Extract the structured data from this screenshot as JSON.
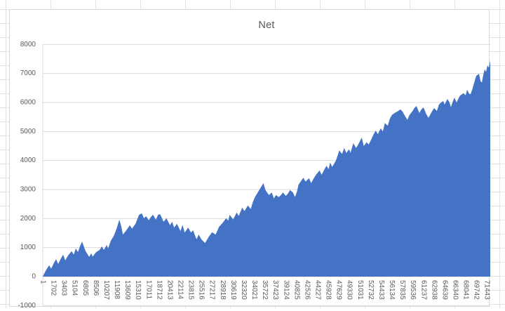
{
  "chart_data": {
    "type": "area",
    "title": "Net",
    "legend": "none",
    "grid": true,
    "x_label_rotation": 90,
    "ylim": [
      -1000,
      8000
    ],
    "y_axis_labels": [
      -1000,
      0,
      1000,
      2000,
      3000,
      4000,
      5000,
      6000,
      7000,
      8000
    ],
    "x_axis_labels": [
      1,
      1702,
      3403,
      5104,
      6805,
      8506,
      10207,
      11908,
      13609,
      15310,
      17011,
      18712,
      20413,
      22114,
      23815,
      25516,
      27217,
      28918,
      30619,
      32320,
      34021,
      35722,
      37423,
      39124,
      40825,
      42526,
      44227,
      45928,
      47629,
      49330,
      51031,
      52732,
      54433,
      56134,
      57835,
      59536,
      61237,
      62938,
      64639,
      66340,
      68041,
      69742,
      71443
    ],
    "series": [
      {
        "name": "Net",
        "color": "#4472c4"
      }
    ],
    "points": [
      [
        1,
        0
      ],
      [
        113,
        50
      ],
      [
        452,
        195
      ],
      [
        1017,
        390
      ],
      [
        1356,
        270
      ],
      [
        1808,
        480
      ],
      [
        2147,
        600
      ],
      [
        2486,
        435
      ],
      [
        2938,
        630
      ],
      [
        3277,
        755
      ],
      [
        3616,
        560
      ],
      [
        4068,
        725
      ],
      [
        4633,
        875
      ],
      [
        4972,
        755
      ],
      [
        5311,
        970
      ],
      [
        5650,
        845
      ],
      [
        5989,
        1050
      ],
      [
        6328,
        1210
      ],
      [
        6667,
        1000
      ],
      [
        6893,
        875
      ],
      [
        7458,
        680
      ],
      [
        7797,
        800
      ],
      [
        8023,
        690
      ],
      [
        8588,
        845
      ],
      [
        9153,
        920
      ],
      [
        9492,
        1040
      ],
      [
        9831,
        920
      ],
      [
        10283,
        1090
      ],
      [
        10509,
        970
      ],
      [
        10961,
        1240
      ],
      [
        11413,
        1400
      ],
      [
        11865,
        1650
      ],
      [
        12317,
        1960
      ],
      [
        12656,
        1700
      ],
      [
        12882,
        1450
      ],
      [
        13447,
        1600
      ],
      [
        14012,
        1770
      ],
      [
        14351,
        1650
      ],
      [
        14916,
        1820
      ],
      [
        15481,
        2130
      ],
      [
        15933,
        2180
      ],
      [
        16272,
        2010
      ],
      [
        16611,
        2080
      ],
      [
        17063,
        1940
      ],
      [
        17402,
        2060
      ],
      [
        17741,
        2130
      ],
      [
        18193,
        1960
      ],
      [
        18532,
        2130
      ],
      [
        18871,
        2150
      ],
      [
        19436,
        1890
      ],
      [
        19888,
        2010
      ],
      [
        20453,
        1770
      ],
      [
        20792,
        1890
      ],
      [
        21131,
        1690
      ],
      [
        21583,
        1820
      ],
      [
        22148,
        1570
      ],
      [
        22487,
        1780
      ],
      [
        22826,
        1520
      ],
      [
        23391,
        1690
      ],
      [
        23843,
        1520
      ],
      [
        24182,
        1600
      ],
      [
        24521,
        1400
      ],
      [
        24747,
        1290
      ],
      [
        25086,
        1450
      ],
      [
        25538,
        1280
      ],
      [
        26103,
        1160
      ],
      [
        26668,
        1360
      ],
      [
        27233,
        1530
      ],
      [
        27798,
        1450
      ],
      [
        28363,
        1720
      ],
      [
        28928,
        1850
      ],
      [
        29493,
        2010
      ],
      [
        29832,
        1930
      ],
      [
        30058,
        2130
      ],
      [
        30623,
        1970
      ],
      [
        31188,
        2210
      ],
      [
        31527,
        2090
      ],
      [
        32092,
        2380
      ],
      [
        32431,
        2260
      ],
      [
        32996,
        2450
      ],
      [
        33448,
        2330
      ],
      [
        33787,
        2570
      ],
      [
        34126,
        2740
      ],
      [
        34578,
        2900
      ],
      [
        35143,
        3100
      ],
      [
        35482,
        3220
      ],
      [
        35821,
        2980
      ],
      [
        36386,
        2810
      ],
      [
        36838,
        2900
      ],
      [
        37177,
        2690
      ],
      [
        37516,
        2810
      ],
      [
        37968,
        2740
      ],
      [
        38307,
        2810
      ],
      [
        38646,
        2900
      ],
      [
        39098,
        2780
      ],
      [
        39437,
        2860
      ],
      [
        39776,
        2980
      ],
      [
        40228,
        2900
      ],
      [
        40567,
        2740
      ],
      [
        40906,
        2950
      ],
      [
        41132,
        3170
      ],
      [
        41697,
        3340
      ],
      [
        41923,
        3410
      ],
      [
        42262,
        3270
      ],
      [
        42827,
        3390
      ],
      [
        43166,
        3220
      ],
      [
        43618,
        3400
      ],
      [
        43957,
        3510
      ],
      [
        44522,
        3660
      ],
      [
        44861,
        3510
      ],
      [
        45313,
        3700
      ],
      [
        45652,
        3820
      ],
      [
        45991,
        3700
      ],
      [
        46217,
        3930
      ],
      [
        46556,
        3780
      ],
      [
        46895,
        3900
      ],
      [
        47121,
        3990
      ],
      [
        47460,
        4190
      ],
      [
        47686,
        4350
      ],
      [
        48138,
        4230
      ],
      [
        48477,
        4430
      ],
      [
        48816,
        4260
      ],
      [
        49268,
        4390
      ],
      [
        49494,
        4260
      ],
      [
        49946,
        4600
      ],
      [
        50398,
        4430
      ],
      [
        50737,
        4550
      ],
      [
        51302,
        4790
      ],
      [
        51641,
        4500
      ],
      [
        52093,
        4630
      ],
      [
        52432,
        4550
      ],
      [
        52884,
        4750
      ],
      [
        53223,
        4910
      ],
      [
        53562,
        5030
      ],
      [
        53901,
        4910
      ],
      [
        54353,
        5110
      ],
      [
        54692,
        5000
      ],
      [
        55031,
        5290
      ],
      [
        55483,
        5200
      ],
      [
        55822,
        5440
      ],
      [
        56161,
        5570
      ],
      [
        56613,
        5640
      ],
      [
        57178,
        5710
      ],
      [
        57517,
        5760
      ],
      [
        57856,
        5690
      ],
      [
        58308,
        5520
      ],
      [
        58647,
        5400
      ],
      [
        58986,
        5570
      ],
      [
        59438,
        5690
      ],
      [
        59777,
        5810
      ],
      [
        60116,
        5880
      ],
      [
        60568,
        5640
      ],
      [
        60907,
        5760
      ],
      [
        61246,
        5830
      ],
      [
        61698,
        5590
      ],
      [
        62037,
        5470
      ],
      [
        62602,
        5690
      ],
      [
        62941,
        5810
      ],
      [
        63393,
        5710
      ],
      [
        63732,
        5930
      ],
      [
        64071,
        6000
      ],
      [
        64410,
        6050
      ],
      [
        64636,
        5930
      ],
      [
        65088,
        6120
      ],
      [
        65427,
        6000
      ],
      [
        65653,
        5840
      ],
      [
        65992,
        6050
      ],
      [
        66218,
        6170
      ],
      [
        66557,
        6000
      ],
      [
        66896,
        6150
      ],
      [
        67122,
        6240
      ],
      [
        67687,
        6320
      ],
      [
        68026,
        6250
      ],
      [
        68252,
        6440
      ],
      [
        68591,
        6300
      ],
      [
        68817,
        6290
      ],
      [
        69156,
        6500
      ],
      [
        69382,
        6680
      ],
      [
        69721,
        6920
      ],
      [
        70173,
        6990
      ],
      [
        70399,
        6750
      ],
      [
        70625,
        6680
      ],
      [
        70851,
        6950
      ],
      [
        71077,
        7140
      ],
      [
        71303,
        7060
      ],
      [
        71529,
        7280
      ],
      [
        71755,
        7200
      ],
      [
        71981,
        7450
      ]
    ]
  },
  "colors": {
    "area_fill": "#4472c4",
    "axis_text": "#595959",
    "title_text": "#595959",
    "gridline": "#d9d9d9",
    "chart_border": "#d9d9d9",
    "sheet_line": "#e2e2e2"
  }
}
